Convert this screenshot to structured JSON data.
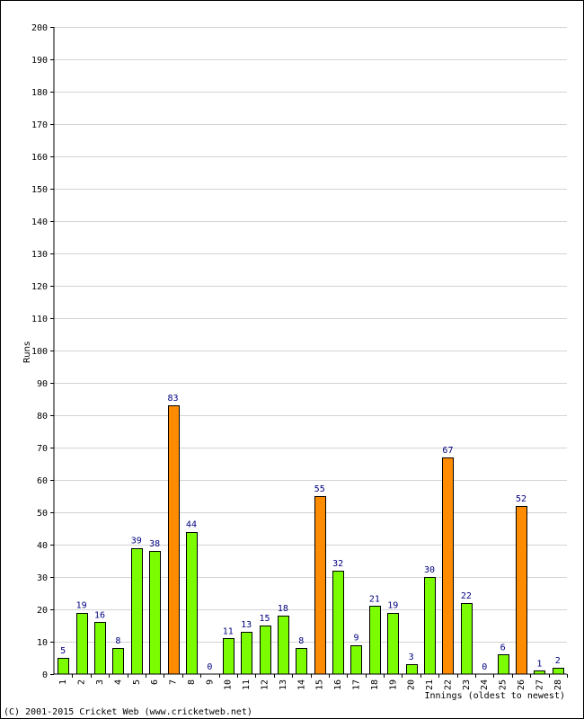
{
  "chart_data": {
    "type": "bar",
    "title": "",
    "xlabel": "Innings (oldest to newest)",
    "ylabel": "Runs",
    "ylim": [
      0,
      200
    ],
    "ytick_step": 10,
    "grid": true,
    "categories": [
      "1",
      "2",
      "3",
      "4",
      "5",
      "6",
      "7",
      "8",
      "9",
      "10",
      "11",
      "12",
      "13",
      "14",
      "15",
      "16",
      "17",
      "18",
      "19",
      "20",
      "21",
      "22",
      "23",
      "24",
      "25",
      "26",
      "27",
      "28"
    ],
    "values": [
      5,
      19,
      16,
      8,
      39,
      38,
      83,
      44,
      0,
      11,
      13,
      15,
      18,
      8,
      55,
      32,
      9,
      21,
      19,
      3,
      30,
      67,
      22,
      0,
      6,
      52,
      1,
      2
    ],
    "colors": {
      "normal": "#7cfc00",
      "fifty_plus": "#ff8c00",
      "bar_outline": "#000000",
      "value_label": "#000080",
      "grid": "#d3d3d3"
    }
  },
  "footer": {
    "copyright": "(C) 2001-2015 Cricket Web (www.cricketweb.net)"
  }
}
